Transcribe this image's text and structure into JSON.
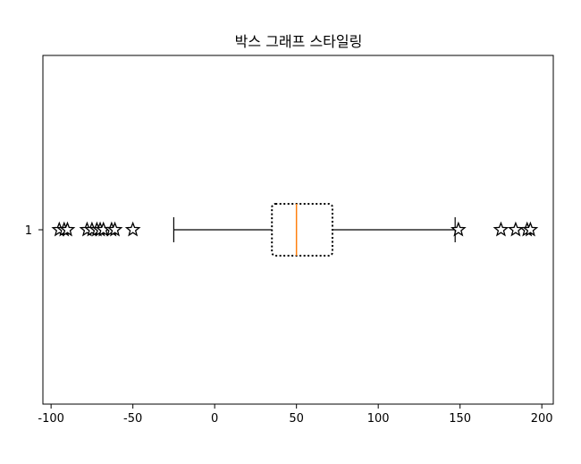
{
  "chart_data": {
    "type": "box",
    "orientation": "horizontal",
    "title": "박스 그래프 스타일링",
    "xlim": [
      -105,
      207
    ],
    "xticks": [
      -100,
      -50,
      0,
      50,
      100,
      150,
      200
    ],
    "xtick_labels": [
      "-100",
      "-50",
      "0",
      "50",
      "100",
      "150",
      "200"
    ],
    "yticks": [
      1
    ],
    "ytick_labels": [
      "1"
    ],
    "grid": false,
    "boxes": [
      {
        "category": "1",
        "whisker_low": -25,
        "q1": 35,
        "median": 50,
        "q3": 72,
        "whisker_high": 147,
        "outliers": [
          -95,
          -92,
          -90,
          -78,
          -75,
          -72,
          -70,
          -68,
          -63,
          -61,
          -50,
          149,
          175,
          184,
          191,
          193
        ]
      }
    ],
    "style": {
      "box_line": "dotted",
      "box_color": "#000000",
      "median_color": "#ff7f0e",
      "whisker_color": "#000000",
      "outlier_marker": "star",
      "outlier_edge": "#000000",
      "outlier_face": "#ffffff"
    }
  }
}
